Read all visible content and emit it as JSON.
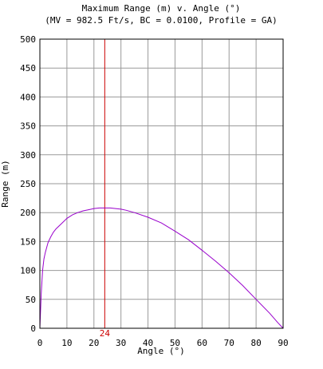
{
  "chart_data": {
    "type": "line",
    "title": "Maximum Range (m) v. Angle (°)",
    "subtitle": "(MV = 982.5 Ft/s, BC = 0.0100, Profile = GA)",
    "xlabel": "Angle (°)",
    "ylabel": "Range (m)",
    "xlim": [
      0,
      90
    ],
    "ylim": [
      0,
      500
    ],
    "x_ticks": [
      0,
      10,
      20,
      30,
      40,
      50,
      60,
      70,
      80,
      90
    ],
    "y_ticks": [
      0,
      50,
      100,
      150,
      200,
      250,
      300,
      350,
      400,
      450,
      500
    ],
    "grid": true,
    "marker": {
      "x": 24,
      "label": "24",
      "color": "#cc0000"
    },
    "series": [
      {
        "color": "#9900cc",
        "x": [
          0,
          0.5,
          1,
          1.5,
          2,
          3,
          4,
          5,
          6,
          8,
          10,
          12,
          14,
          16,
          18,
          20,
          22,
          24,
          26,
          28,
          30,
          32,
          35,
          40,
          45,
          50,
          55,
          60,
          65,
          70,
          75,
          80,
          85,
          88,
          90
        ],
        "y": [
          0,
          60,
          100,
          120,
          131,
          148,
          158,
          166,
          172,
          181,
          190,
          196,
          200,
          203,
          205,
          207,
          208,
          208,
          208,
          207,
          206,
          204,
          200,
          192,
          182,
          168,
          153,
          135,
          116,
          96,
          74,
          50,
          26,
          10,
          0
        ]
      }
    ]
  }
}
